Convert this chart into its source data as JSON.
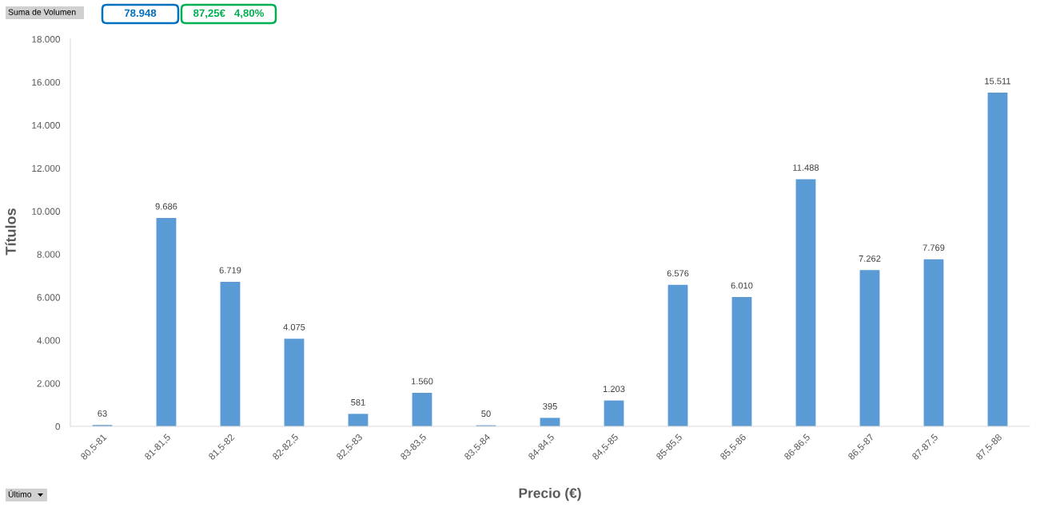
{
  "chart_data": {
    "type": "bar",
    "categories": [
      "80,5-81",
      "81-81,5",
      "81,5-82",
      "82-82,5",
      "82,5-83",
      "83-83,5",
      "83,5-84",
      "84-84,5",
      "84,5-85",
      "85-85,5",
      "85,5-86",
      "86-86,5",
      "86,5-87",
      "87-87,5",
      "87,5-88"
    ],
    "values": [
      63,
      9686,
      6719,
      4075,
      581,
      1560,
      50,
      395,
      1203,
      6576,
      6010,
      11488,
      7262,
      7769,
      15511
    ],
    "value_labels": [
      "63",
      "9.686",
      "6.719",
      "4.075",
      "581",
      "1.560",
      "50",
      "395",
      "1.203",
      "6.576",
      "6.010",
      "11.488",
      "7.262",
      "7.769",
      "15.511"
    ],
    "color": "#5b9bd5",
    "ylim": [
      0,
      18000
    ],
    "yticks": [
      {
        "value": 0,
        "label": "0"
      },
      {
        "value": 2000,
        "label": "2.000"
      },
      {
        "value": 4000,
        "label": "4.000"
      },
      {
        "value": 6000,
        "label": "6.000"
      },
      {
        "value": 8000,
        "label": "8.000"
      },
      {
        "value": 10000,
        "label": "10.000"
      },
      {
        "value": 12000,
        "label": "12.000"
      },
      {
        "value": 14000,
        "label": "14.000"
      },
      {
        "value": 16000,
        "label": "16.000"
      },
      {
        "value": 18000,
        "label": "18.000"
      }
    ],
    "xlabel": "Precio (€)",
    "ylabel": "Títulos",
    "annotations": [
      "Suma de Volumen",
      "78.948",
      "87,25€   4,80%",
      "Último"
    ]
  }
}
